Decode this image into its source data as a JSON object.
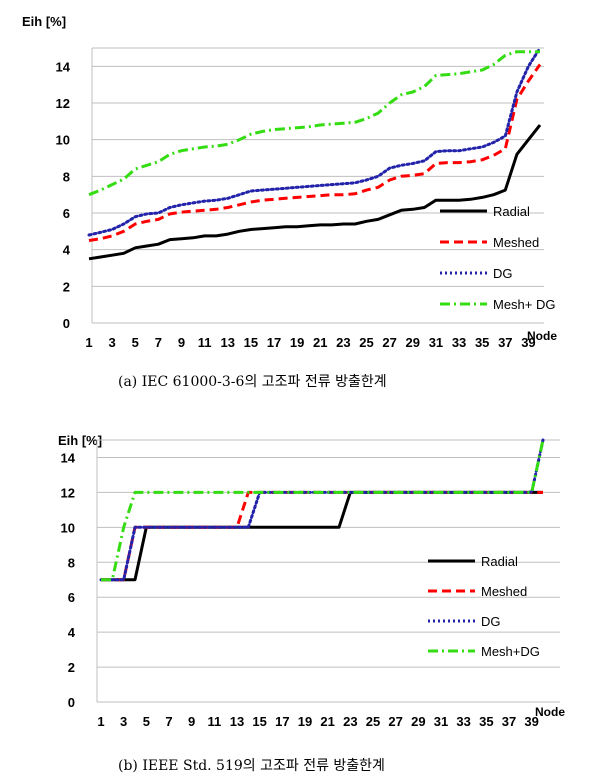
{
  "chart_data": [
    {
      "type": "line",
      "ylabel": "Eih [%]",
      "xlabel": "Node",
      "caption": "(a) IEC 61000-3-6의 고조파 전류 방출한계",
      "ylim": [
        0,
        15
      ],
      "yticks": [
        0,
        2,
        4,
        6,
        8,
        10,
        12,
        14
      ],
      "x": [
        1,
        2,
        3,
        4,
        5,
        6,
        7,
        8,
        9,
        10,
        11,
        12,
        13,
        14,
        15,
        16,
        17,
        18,
        19,
        20,
        21,
        22,
        23,
        24,
        25,
        26,
        27,
        28,
        29,
        30,
        31,
        32,
        33,
        34,
        35,
        36,
        37,
        38,
        39,
        40
      ],
      "xticks": [
        1,
        3,
        5,
        7,
        9,
        11,
        13,
        15,
        17,
        19,
        21,
        23,
        25,
        27,
        29,
        31,
        33,
        35,
        37,
        39
      ],
      "grid": "horizontal",
      "legend_position": "right",
      "series": [
        {
          "name": "Radial",
          "color": "#000000",
          "style": "solid",
          "values": [
            3.5,
            3.6,
            3.7,
            3.8,
            4.1,
            4.2,
            4.3,
            4.55,
            4.6,
            4.65,
            4.75,
            4.75,
            4.85,
            5.0,
            5.1,
            5.15,
            5.2,
            5.25,
            5.25,
            5.3,
            5.35,
            5.35,
            5.4,
            5.4,
            5.55,
            5.65,
            5.9,
            6.15,
            6.2,
            6.3,
            6.7,
            6.7,
            6.7,
            6.75,
            6.85,
            7.0,
            7.25,
            9.2,
            10.0,
            10.8
          ]
        },
        {
          "name": "Meshed",
          "color": "#ff0000",
          "style": "dashed",
          "values": [
            4.5,
            4.6,
            4.75,
            5.0,
            5.4,
            5.55,
            5.65,
            5.95,
            6.05,
            6.1,
            6.15,
            6.2,
            6.3,
            6.45,
            6.6,
            6.7,
            6.75,
            6.8,
            6.85,
            6.9,
            6.95,
            7.0,
            7.0,
            7.05,
            7.25,
            7.4,
            7.8,
            8.0,
            8.05,
            8.15,
            8.7,
            8.75,
            8.75,
            8.8,
            8.9,
            9.15,
            9.5,
            12.2,
            13.2,
            14.1
          ]
        },
        {
          "name": "DG",
          "color": "#2222aa",
          "style": "dotted",
          "values": [
            4.8,
            4.95,
            5.1,
            5.4,
            5.8,
            5.95,
            6.0,
            6.3,
            6.45,
            6.55,
            6.65,
            6.7,
            6.8,
            7.0,
            7.2,
            7.25,
            7.3,
            7.35,
            7.4,
            7.45,
            7.5,
            7.55,
            7.6,
            7.65,
            7.8,
            8.0,
            8.45,
            8.6,
            8.7,
            8.85,
            9.35,
            9.4,
            9.4,
            9.5,
            9.6,
            9.85,
            10.2,
            12.6,
            14.0,
            15.0
          ]
        },
        {
          "name": "Mesh+ DG",
          "color": "#33dd11",
          "style": "dashdot",
          "values": [
            7.0,
            7.25,
            7.55,
            7.85,
            8.4,
            8.6,
            8.8,
            9.2,
            9.4,
            9.5,
            9.6,
            9.65,
            9.75,
            10.0,
            10.3,
            10.45,
            10.55,
            10.6,
            10.65,
            10.7,
            10.8,
            10.85,
            10.9,
            10.95,
            11.15,
            11.45,
            12.0,
            12.45,
            12.6,
            12.9,
            13.5,
            13.55,
            13.6,
            13.7,
            13.8,
            14.1,
            14.6,
            14.8,
            14.8,
            14.8
          ]
        }
      ]
    },
    {
      "type": "line",
      "ylabel": "Eih [%]",
      "xlabel": "Node",
      "caption": "(b) IEEE Std. 519의 고조파 전류 방출한계",
      "ylim": [
        0,
        15
      ],
      "yticks": [
        0,
        2,
        4,
        6,
        8,
        10,
        12,
        14
      ],
      "x": [
        1,
        2,
        3,
        4,
        5,
        6,
        7,
        8,
        9,
        10,
        11,
        12,
        13,
        14,
        15,
        16,
        17,
        18,
        19,
        20,
        21,
        22,
        23,
        24,
        25,
        26,
        27,
        28,
        29,
        30,
        31,
        32,
        33,
        34,
        35,
        36,
        37,
        38,
        39,
        40
      ],
      "xticks": [
        1,
        3,
        5,
        7,
        9,
        11,
        13,
        15,
        17,
        19,
        21,
        23,
        25,
        27,
        29,
        31,
        33,
        35,
        37,
        39
      ],
      "grid": "horizontal",
      "legend_position": "right",
      "series": [
        {
          "name": "Radial",
          "color": "#000000",
          "style": "solid",
          "values": [
            7,
            7,
            7,
            7,
            10,
            10,
            10,
            10,
            10,
            10,
            10,
            10,
            10,
            10,
            10,
            10,
            10,
            10,
            10,
            10,
            10,
            10,
            12,
            12,
            12,
            12,
            12,
            12,
            12,
            12,
            12,
            12,
            12,
            12,
            12,
            12,
            12,
            12,
            12,
            12
          ]
        },
        {
          "name": "Meshed",
          "color": "#ff0000",
          "style": "dashed",
          "values": [
            7,
            7,
            7,
            10,
            10,
            10,
            10,
            10,
            10,
            10,
            10,
            10,
            10,
            12,
            12,
            12,
            12,
            12,
            12,
            12,
            12,
            12,
            12,
            12,
            12,
            12,
            12,
            12,
            12,
            12,
            12,
            12,
            12,
            12,
            12,
            12,
            12,
            12,
            12,
            12
          ]
        },
        {
          "name": "DG",
          "color": "#2222aa",
          "style": "dotted",
          "values": [
            7,
            7,
            7,
            10,
            10,
            10,
            10,
            10,
            10,
            10,
            10,
            10,
            10,
            10,
            12,
            12,
            12,
            12,
            12,
            12,
            12,
            12,
            12,
            12,
            12,
            12,
            12,
            12,
            12,
            12,
            12,
            12,
            12,
            12,
            12,
            12,
            12,
            12,
            12,
            15
          ]
        },
        {
          "name": "Mesh+DG",
          "color": "#33dd11",
          "style": "dashdot",
          "values": [
            7,
            7,
            10,
            12,
            12,
            12,
            12,
            12,
            12,
            12,
            12,
            12,
            12,
            12,
            12,
            12,
            12,
            12,
            12,
            12,
            12,
            12,
            12,
            12,
            12,
            12,
            12,
            12,
            12,
            12,
            12,
            12,
            12,
            12,
            12,
            12,
            12,
            12,
            12,
            15
          ]
        }
      ]
    }
  ]
}
